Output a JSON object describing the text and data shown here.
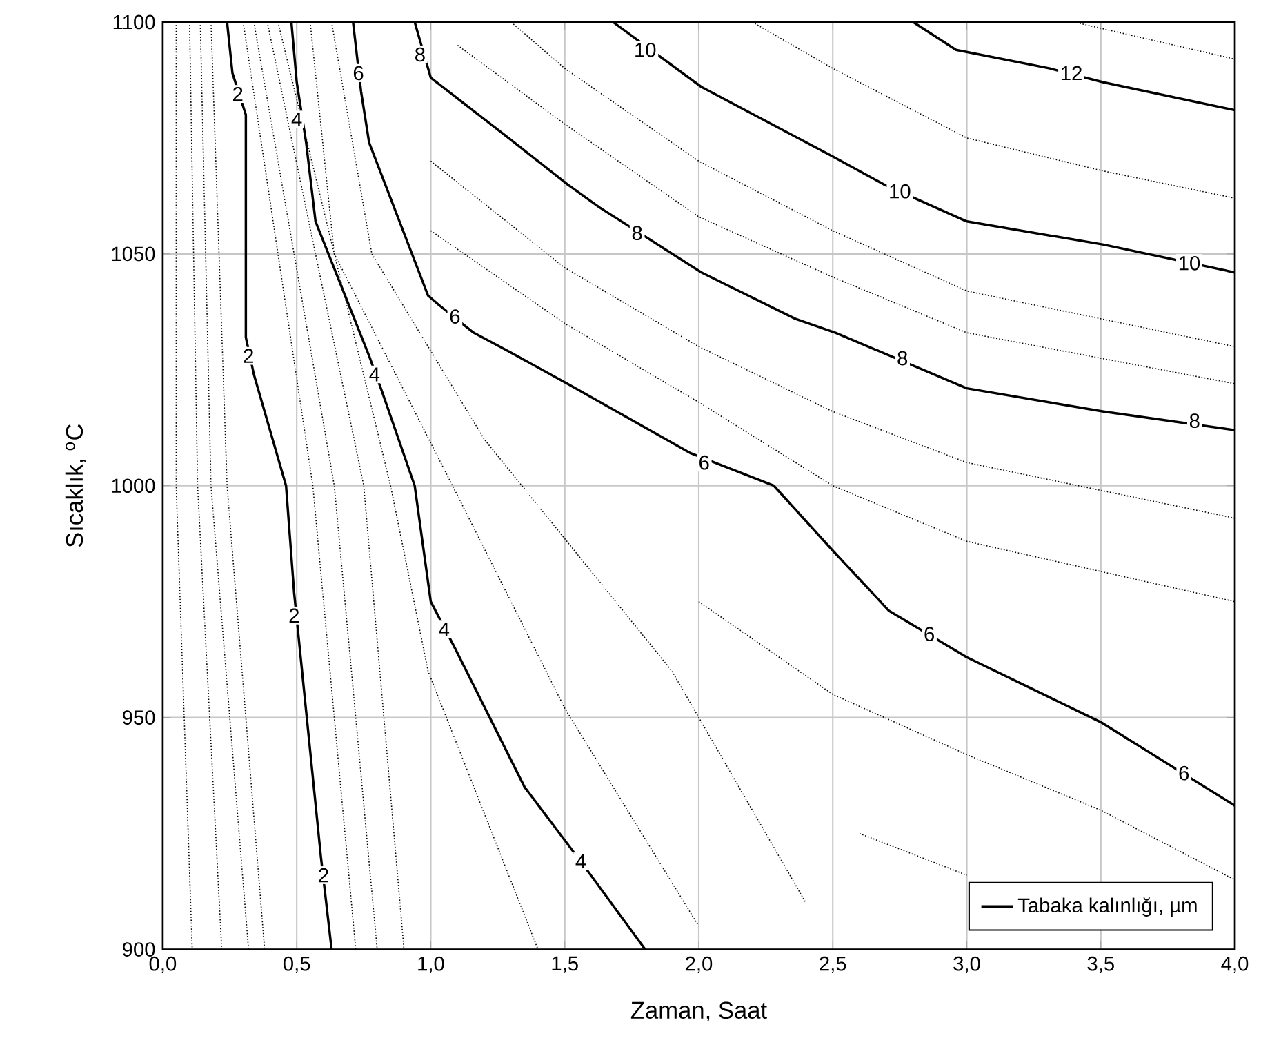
{
  "chart_data": {
    "type": "line",
    "xlabel": "Zaman, Saat",
    "ylabel": "Sıcaklık, $^{o}$C",
    "xlim": [
      0,
      4
    ],
    "ylim": [
      900,
      1100
    ],
    "xticks": [
      {
        "value": 0,
        "label": "0,0"
      },
      {
        "value": 0.5,
        "label": "0,5"
      },
      {
        "value": 1,
        "label": "1,0"
      },
      {
        "value": 1.5,
        "label": "1,5"
      },
      {
        "value": 2,
        "label": "2,0"
      },
      {
        "value": 2.5,
        "label": "2,5"
      },
      {
        "value": 3,
        "label": "3,0"
      },
      {
        "value": 3.5,
        "label": "3,5"
      },
      {
        "value": 4,
        "label": "4,0"
      }
    ],
    "yticks": [
      900,
      950,
      1000,
      1050,
      1100
    ],
    "grid": true,
    "legend": "bottom right",
    "marker": "none",
    "series": [
      {
        "name": "Tabaka kalınlığı, µm",
        "color": "#000000",
        "line_style": "solid",
        "x": [
          0.24,
          0.26,
          0.31,
          0.31,
          0.34,
          0.46,
          0.49,
          0.59,
          0.63
        ],
        "values": [
          1100,
          1089,
          1080,
          1032,
          1024,
          1000,
          977,
          920,
          900
        ]
      },
      {
        "color": "#000000",
        "line_style": "solid",
        "x": [
          0.48,
          0.5,
          0.535,
          0.57,
          0.77,
          0.82,
          0.94,
          1.0,
          1.09,
          1.22,
          1.35,
          1.52,
          1.61,
          1.8
        ],
        "values": [
          1100,
          1087,
          1074,
          1057,
          1028,
          1020,
          1000,
          975,
          965,
          950,
          935,
          922,
          915,
          900
        ]
      },
      {
        "color": "#000000",
        "line_style": "solid",
        "x": [
          0.71,
          0.74,
          0.77,
          0.99,
          1.03,
          1.16,
          1.29,
          1.51,
          1.97,
          2.28,
          2.5,
          2.71,
          3.0,
          3.5,
          4.0
        ],
        "values": [
          1100,
          1085,
          1074,
          1041,
          1039,
          1033,
          1029,
          1022,
          1007,
          1000,
          986,
          973,
          963,
          949,
          931
        ]
      },
      {
        "color": "#000000",
        "line_style": "solid",
        "x": [
          0.94,
          1.0,
          1.29,
          1.51,
          1.63,
          2.01,
          2.36,
          2.51,
          3.0,
          3.51,
          4.0
        ],
        "values": [
          1100,
          1088,
          1075,
          1065,
          1060,
          1046,
          1036,
          1033,
          1021,
          1016,
          1012
        ]
      },
      {
        "color": "#000000",
        "line_style": "solid",
        "x": [
          1.68,
          2.01,
          2.5,
          2.69,
          3.0,
          3.51,
          4.0
        ],
        "values": [
          1100,
          1086,
          1071,
          1065,
          1057,
          1052,
          1046
        ]
      },
      {
        "color": "#000000",
        "line_style": "solid",
        "x": [
          2.8,
          2.96,
          3.31,
          3.51,
          4.0
        ],
        "values": [
          1100,
          1094,
          1090,
          1087,
          1081
        ]
      },
      {
        "color": "#000000",
        "line_style": "dotted",
        "x": [
          0.05,
          0.05,
          0.11
        ],
        "values": [
          1100,
          1000,
          900
        ]
      },
      {
        "color": "#000000",
        "line_style": "dotted",
        "x": [
          0.1,
          0.13,
          0.22
        ],
        "values": [
          1100,
          1000,
          900
        ]
      },
      {
        "color": "#000000",
        "line_style": "dotted",
        "x": [
          0.14,
          0.18,
          0.32
        ],
        "values": [
          1100,
          1000,
          900
        ]
      },
      {
        "color": "#000000",
        "line_style": "dotted",
        "x": [
          0.18,
          0.24,
          0.38
        ],
        "values": [
          1100,
          1000,
          900
        ]
      },
      {
        "color": "#000000",
        "line_style": "dotted",
        "x": [
          0.3,
          0.56,
          0.72
        ],
        "values": [
          1100,
          1000,
          900
        ]
      },
      {
        "color": "#000000",
        "line_style": "dotted",
        "x": [
          0.34,
          0.64,
          0.8
        ],
        "values": [
          1100,
          1000,
          900
        ]
      },
      {
        "color": "#000000",
        "line_style": "dotted",
        "x": [
          0.39,
          0.75,
          0.9
        ],
        "values": [
          1100,
          1000,
          900
        ]
      },
      {
        "color": "#000000",
        "line_style": "dotted",
        "x": [
          0.43,
          0.85,
          0.99,
          1.4
        ],
        "values": [
          1100,
          1000,
          960,
          900
        ]
      },
      {
        "color": "#000000",
        "line_style": "dotted",
        "x": [
          0.55,
          0.64,
          1.09,
          1.5,
          2.0
        ],
        "values": [
          1100,
          1050,
          999,
          952,
          905
        ]
      },
      {
        "color": "#000000",
        "line_style": "dotted",
        "x": [
          0.63,
          0.78,
          1.2,
          1.9,
          2.4
        ],
        "values": [
          1100,
          1050,
          1010,
          960,
          910
        ]
      },
      {
        "color": "#000000",
        "line_style": "dotted",
        "x": [
          1.0,
          1.5,
          2.0,
          2.5,
          3.0,
          4.0
        ],
        "values": [
          1070,
          1047,
          1030,
          1016,
          1005,
          993
        ]
      },
      {
        "color": "#000000",
        "line_style": "dotted",
        "x": [
          1.0,
          1.5,
          2.0,
          2.5,
          3.0,
          4.0
        ],
        "values": [
          1055,
          1035,
          1018,
          1000,
          988,
          975
        ]
      },
      {
        "color": "#000000",
        "line_style": "dotted",
        "x": [
          2.0,
          2.5,
          3.0,
          3.5,
          4.0
        ],
        "values": [
          975,
          955,
          942,
          930,
          915
        ]
      },
      {
        "color": "#000000",
        "line_style": "dotted",
        "x": [
          2.6,
          3.0
        ],
        "values": [
          925,
          916
        ]
      },
      {
        "color": "#000000",
        "line_style": "dotted",
        "x": [
          1.3,
          1.5,
          2.0,
          2.5,
          3.0,
          4.0
        ],
        "values": [
          1100,
          1090,
          1070,
          1055,
          1042,
          1030
        ]
      },
      {
        "color": "#000000",
        "line_style": "dotted",
        "x": [
          1.1,
          1.5,
          2.0,
          2.5,
          3.0,
          4.0
        ],
        "values": [
          1095,
          1078,
          1058,
          1045,
          1033,
          1022
        ]
      },
      {
        "color": "#000000",
        "line_style": "dotted",
        "x": [
          2.2,
          2.5,
          3.0,
          3.5,
          4.0
        ],
        "values": [
          1100,
          1090,
          1075,
          1068,
          1062
        ]
      },
      {
        "color": "#000000",
        "line_style": "dotted",
        "x": [
          3.4,
          4.0
        ],
        "values": [
          1100,
          1092
        ]
      }
    ],
    "annotations": [
      {
        "text": "2",
        "x": 0.28,
        "y": 1084.5
      },
      {
        "text": "2",
        "x": 0.32,
        "y": 1028
      },
      {
        "text": "2",
        "x": 0.49,
        "y": 972
      },
      {
        "text": "2",
        "x": 0.6,
        "y": 916
      },
      {
        "text": "4",
        "x": 0.5,
        "y": 1079
      },
      {
        "text": "4",
        "x": 0.79,
        "y": 1024
      },
      {
        "text": "4",
        "x": 1.05,
        "y": 969
      },
      {
        "text": "4",
        "x": 1.56,
        "y": 919
      },
      {
        "text": "6",
        "x": 0.73,
        "y": 1089
      },
      {
        "text": "6",
        "x": 1.09,
        "y": 1036.5
      },
      {
        "text": "6",
        "x": 2.02,
        "y": 1005
      },
      {
        "text": "6",
        "x": 2.86,
        "y": 968
      },
      {
        "text": "6",
        "x": 3.81,
        "y": 938
      },
      {
        "text": "8",
        "x": 0.96,
        "y": 1093
      },
      {
        "text": "8",
        "x": 1.77,
        "y": 1054.5
      },
      {
        "text": "8",
        "x": 2.76,
        "y": 1027.5
      },
      {
        "text": "8",
        "x": 3.85,
        "y": 1014
      },
      {
        "text": "10",
        "x": 1.8,
        "y": 1094
      },
      {
        "text": "10",
        "x": 2.75,
        "y": 1063.5
      },
      {
        "text": "10",
        "x": 3.83,
        "y": 1048
      },
      {
        "text": "12",
        "x": 3.39,
        "y": 1089
      }
    ]
  }
}
